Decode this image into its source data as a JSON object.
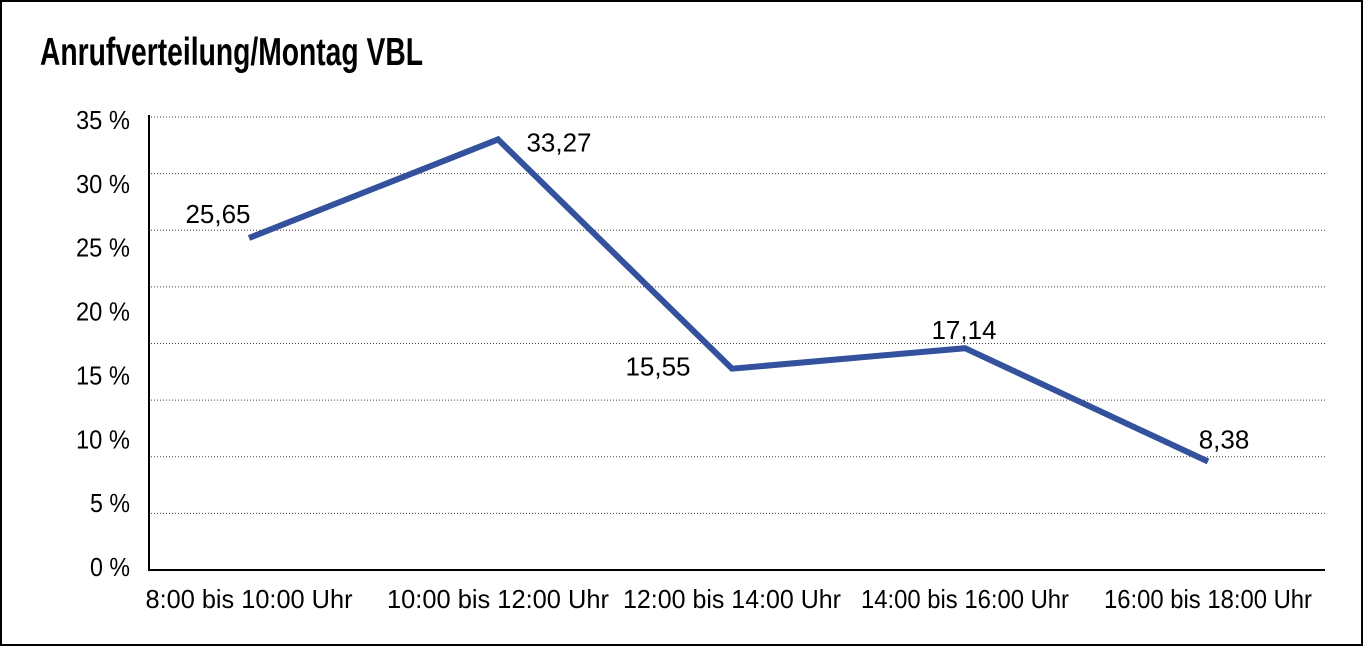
{
  "chart_data": {
    "type": "line",
    "title": "Anrufverteilung/Montag VBL",
    "categories": [
      "8:00 bis 10:00 Uhr",
      "10:00 bis 12:00 Uhr",
      "12:00 bis 14:00 Uhr",
      "14:00 bis 16:00 Uhr",
      "16:00 bis 18:00 Uhr"
    ],
    "values": [
      25.65,
      33.27,
      15.55,
      17.14,
      8.38
    ],
    "point_labels": [
      "25,65",
      "33,27",
      "15,55",
      "17,14",
      "8,38"
    ],
    "y_tick_labels": [
      "35 %",
      "30 %",
      "25 %",
      "20 %",
      "15 %",
      "10 %",
      "5 %",
      "0 %"
    ],
    "ylim": [
      0,
      35
    ],
    "xlabel": "",
    "ylabel": "",
    "legend_position": "none",
    "grid": "horizontal-dotted",
    "series_color": "#33519C",
    "grid_color": "#404040",
    "axis_color": "#000000",
    "text_color": "#000000"
  }
}
